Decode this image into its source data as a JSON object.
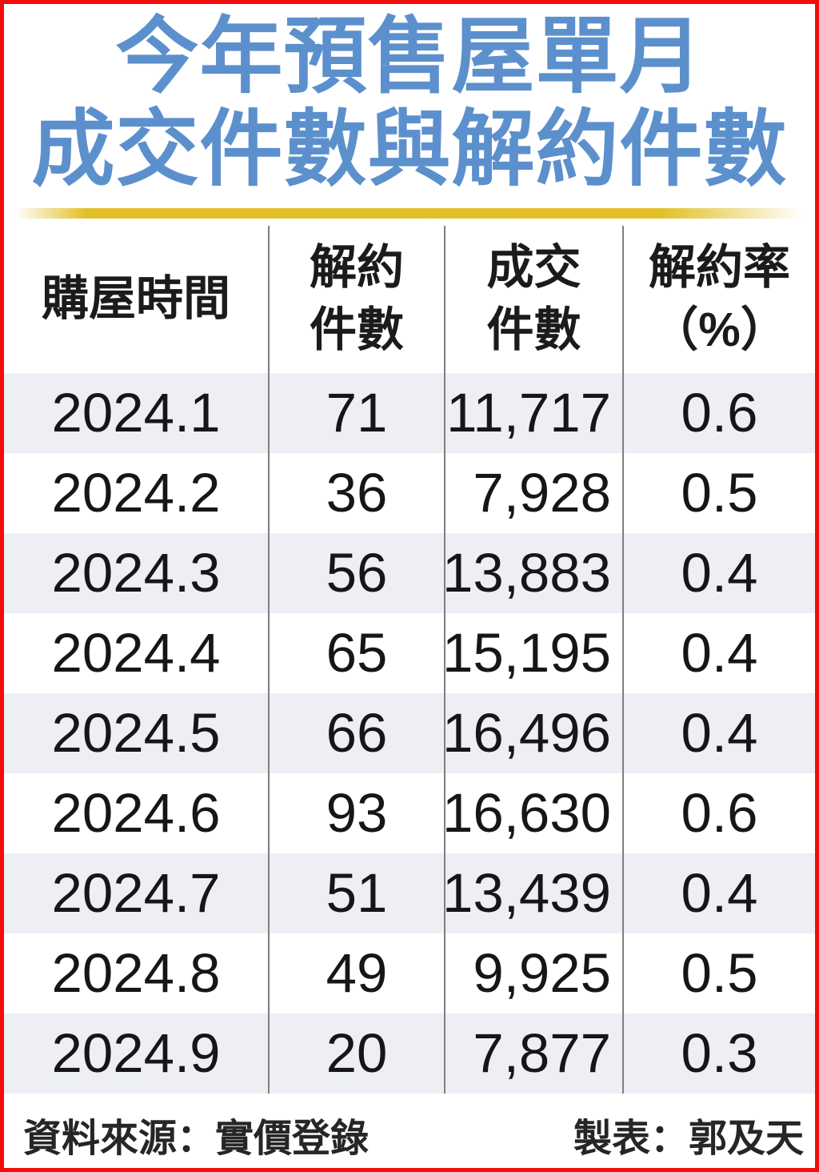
{
  "title": {
    "line1": "今年預售屋單月",
    "line2": "成交件數與解約件數"
  },
  "table": {
    "headers": {
      "period": "購屋時間",
      "cancel_line1": "解約",
      "cancel_line2": "件數",
      "deal_line1": "成交",
      "deal_line2": "件數",
      "rate_line1": "解約率",
      "rate_line2": "（%）"
    },
    "rows": [
      {
        "period": "2024.1",
        "cancellations": "71",
        "transactions": "11,717",
        "rate": "0.6"
      },
      {
        "period": "2024.2",
        "cancellations": "36",
        "transactions": "7,928",
        "rate": "0.5"
      },
      {
        "period": "2024.3",
        "cancellations": "56",
        "transactions": "13,883",
        "rate": "0.4"
      },
      {
        "period": "2024.4",
        "cancellations": "65",
        "transactions": "15,195",
        "rate": "0.4"
      },
      {
        "period": "2024.5",
        "cancellations": "66",
        "transactions": "16,496",
        "rate": "0.4"
      },
      {
        "period": "2024.6",
        "cancellations": "93",
        "transactions": "16,630",
        "rate": "0.6"
      },
      {
        "period": "2024.7",
        "cancellations": "51",
        "transactions": "13,439",
        "rate": "0.4"
      },
      {
        "period": "2024.8",
        "cancellations": "49",
        "transactions": "9,925",
        "rate": "0.5"
      },
      {
        "period": "2024.9",
        "cancellations": "20",
        "transactions": "7,877",
        "rate": "0.3"
      }
    ]
  },
  "footer": {
    "source": "資料來源：實價登錄",
    "credit": "製表：郭及天"
  },
  "colors": {
    "title_blue": "#5c90cd",
    "border_red": "#f20d0d",
    "gold_bar": "#e2bf28",
    "stripe": "#edeff5",
    "divider_gray": "#7f7f7f",
    "text_black": "#161616"
  },
  "chart_data": {
    "type": "table",
    "title": "今年預售屋單月成交件數與解約件數",
    "columns": [
      "購屋時間",
      "解約件數",
      "成交件數",
      "解約率（%）"
    ],
    "rows": [
      [
        "2024.1",
        71,
        11717,
        0.6
      ],
      [
        "2024.2",
        36,
        7928,
        0.5
      ],
      [
        "2024.3",
        56,
        13883,
        0.4
      ],
      [
        "2024.4",
        65,
        15195,
        0.4
      ],
      [
        "2024.5",
        66,
        16496,
        0.4
      ],
      [
        "2024.6",
        93,
        16630,
        0.6
      ],
      [
        "2024.7",
        51,
        13439,
        0.4
      ],
      [
        "2024.8",
        49,
        9925,
        0.5
      ],
      [
        "2024.9",
        20,
        7877,
        0.3
      ]
    ],
    "source": "實價登錄",
    "credit": "郭及天",
    "layout": "striped rows, vertical column dividers only, no horizontal grid lines"
  }
}
